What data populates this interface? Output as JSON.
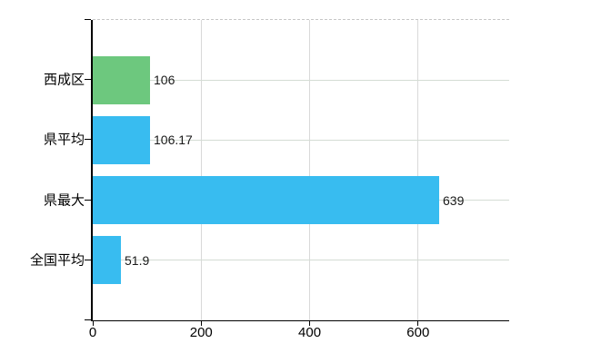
{
  "chart_data": {
    "type": "bar",
    "orientation": "horizontal",
    "title": "",
    "categories": [
      "西成区",
      "県平均",
      "県最大",
      "全国平均"
    ],
    "values": [
      106,
      106.17,
      639,
      51.9
    ],
    "value_labels": [
      "106",
      "106.17",
      "639",
      "51.9"
    ],
    "series": [
      {
        "name": "",
        "values": [
          106,
          106.17,
          639,
          51.9
        ]
      }
    ],
    "bar_colors": [
      "#6dc87e",
      "#38bcf0",
      "#38bcf0",
      "#38bcf0"
    ],
    "xlabel": "",
    "ylabel": "",
    "xlim": [
      0,
      768
    ],
    "x_ticks": [
      0,
      200,
      400,
      600
    ],
    "x_tick_labels": [
      "0",
      "200",
      "400",
      "600"
    ],
    "grid": true,
    "legend": false
  },
  "colors": {
    "background": "#ffffff",
    "axis": "#000000",
    "horizontal_gridline": "#d4dcd4",
    "vertical_gridline": "#d9d9d9",
    "top_border_dashed": "#c6c6c6",
    "bar_green": "#6dc87e",
    "bar_blue": "#38bcf0",
    "label_text": "#000000",
    "value_text": "#1a1a1a"
  }
}
